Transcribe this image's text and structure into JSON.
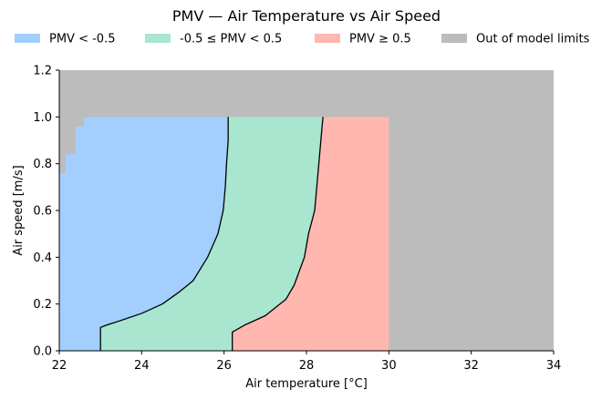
{
  "chart_data": {
    "type": "area",
    "title": "PMV — Air Temperature vs Air Speed",
    "xlabel": "Air temperature [°C]",
    "ylabel": "Air speed [m/s]",
    "xlim": [
      22,
      34
    ],
    "ylim": [
      0,
      1.2
    ],
    "xticks": [
      22,
      24,
      26,
      28,
      30,
      32,
      34
    ],
    "yticks": [
      0.0,
      0.2,
      0.4,
      0.6,
      0.8,
      1.0,
      1.2
    ],
    "xtick_labels": [
      "22",
      "24",
      "26",
      "28",
      "30",
      "32",
      "34"
    ],
    "ytick_labels": [
      "0.0",
      "0.2",
      "0.4",
      "0.6",
      "0.8",
      "1.0",
      "1.2"
    ],
    "legend_position": "top",
    "model_air_speed_max": 1.0,
    "model_air_temperature_max": 30.0,
    "excluded_low_temperature_steps": [
      {
        "air_speed": 0.76,
        "air_temperature": 22.15
      },
      {
        "air_speed": 0.84,
        "air_temperature": 22.4
      },
      {
        "air_speed": 0.96,
        "air_temperature": 22.6
      },
      {
        "air_speed": 1.0,
        "air_temperature": 22.6
      }
    ],
    "series": [
      {
        "name": "PMV < -0.5",
        "color": "#a3cfff"
      },
      {
        "name": "-0.5 ≤ PMV < 0.5",
        "color": "#a8e6cf"
      },
      {
        "name": "PMV ≥ 0.5",
        "color": "#ffb7b0"
      },
      {
        "name": "Out of model limits",
        "color": "#bcbcbc"
      }
    ],
    "boundaries": [
      {
        "label": "PMV = -0.5",
        "points": [
          [
            23.0,
            0.0
          ],
          [
            23.0,
            0.1
          ],
          [
            23.15,
            0.11
          ],
          [
            23.5,
            0.13
          ],
          [
            24.0,
            0.16
          ],
          [
            24.5,
            0.2
          ],
          [
            24.9,
            0.25
          ],
          [
            25.25,
            0.3
          ],
          [
            25.6,
            0.4
          ],
          [
            25.85,
            0.5
          ],
          [
            25.98,
            0.6
          ],
          [
            26.03,
            0.7
          ],
          [
            26.06,
            0.8
          ],
          [
            26.1,
            0.9
          ],
          [
            26.1,
            1.0
          ]
        ]
      },
      {
        "label": "PMV = 0.5",
        "points": [
          [
            26.2,
            0.0
          ],
          [
            26.2,
            0.08
          ],
          [
            26.5,
            0.11
          ],
          [
            27.0,
            0.15
          ],
          [
            27.5,
            0.22
          ],
          [
            27.7,
            0.28
          ],
          [
            27.95,
            0.4
          ],
          [
            28.05,
            0.5
          ],
          [
            28.2,
            0.6
          ],
          [
            28.3,
            0.8
          ],
          [
            28.35,
            0.9
          ],
          [
            28.4,
            1.0
          ]
        ]
      }
    ]
  }
}
